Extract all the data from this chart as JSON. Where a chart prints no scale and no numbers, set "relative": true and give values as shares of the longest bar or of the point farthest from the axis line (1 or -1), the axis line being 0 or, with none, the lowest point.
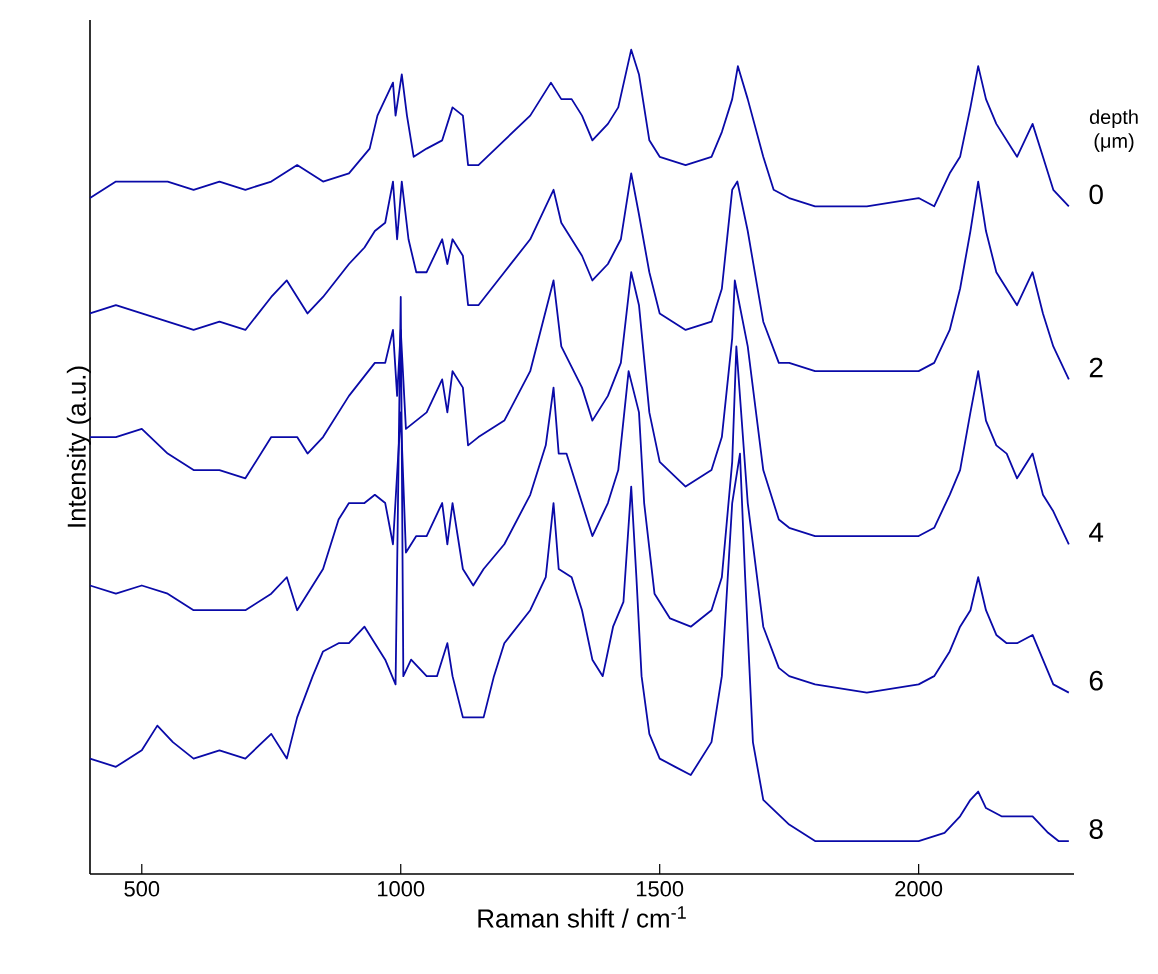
{
  "chart_data": {
    "type": "line",
    "relative": true,
    "xlabel": "Raman shift / cm$^{-1}$",
    "ylabel": "Intensity (a.u.)",
    "legend_title": "depth (μm)",
    "xlim": [
      400,
      2300
    ],
    "xticks": [
      500,
      1000,
      1500,
      2000
    ],
    "grid": false,
    "legend": false,
    "marker": "none",
    "line_style": "solid",
    "series": [
      {
        "name": "0",
        "color": "#0a0aa8",
        "x": [
          400,
          450,
          500,
          550,
          600,
          650,
          700,
          750,
          800,
          850,
          900,
          940,
          955,
          985,
          990,
          1002,
          1012,
          1025,
          1050,
          1080,
          1100,
          1120,
          1130,
          1150,
          1200,
          1250,
          1290,
          1310,
          1330,
          1350,
          1370,
          1400,
          1420,
          1445,
          1460,
          1480,
          1500,
          1550,
          1600,
          1620,
          1640,
          1651,
          1670,
          1700,
          1720,
          1750,
          1800,
          1900,
          2000,
          2030,
          2060,
          2080,
          2100,
          2115,
          2130,
          2150,
          2170,
          2190,
          2220,
          2240,
          2260,
          2290
        ],
        "values": [
          0.82,
          0.84,
          0.84,
          0.84,
          0.83,
          0.84,
          0.83,
          0.84,
          0.86,
          0.84,
          0.85,
          0.88,
          0.92,
          0.96,
          0.92,
          0.97,
          0.92,
          0.87,
          0.88,
          0.89,
          0.93,
          0.92,
          0.86,
          0.86,
          0.89,
          0.92,
          0.96,
          0.94,
          0.94,
          0.92,
          0.89,
          0.91,
          0.93,
          1.0,
          0.97,
          0.89,
          0.87,
          0.86,
          0.87,
          0.9,
          0.94,
          0.98,
          0.94,
          0.87,
          0.83,
          0.82,
          0.81,
          0.81,
          0.82,
          0.81,
          0.85,
          0.87,
          0.93,
          0.98,
          0.94,
          0.91,
          0.89,
          0.87,
          0.91,
          0.87,
          0.83,
          0.81
        ]
      },
      {
        "name": "2",
        "color": "#0a0aa8",
        "x": [
          400,
          450,
          500,
          550,
          600,
          650,
          700,
          750,
          780,
          800,
          820,
          850,
          900,
          930,
          950,
          970,
          985,
          993,
          1002,
          1015,
          1030,
          1050,
          1080,
          1090,
          1100,
          1120,
          1130,
          1150,
          1200,
          1250,
          1295,
          1310,
          1350,
          1370,
          1400,
          1425,
          1445,
          1460,
          1480,
          1500,
          1550,
          1600,
          1620,
          1640,
          1650,
          1670,
          1700,
          1730,
          1750,
          1800,
          1900,
          2000,
          2030,
          2060,
          2080,
          2100,
          2115,
          2130,
          2150,
          2170,
          2190,
          2220,
          2240,
          2260,
          2290
        ],
        "values": [
          0.68,
          0.69,
          0.68,
          0.67,
          0.66,
          0.67,
          0.66,
          0.7,
          0.72,
          0.7,
          0.68,
          0.7,
          0.74,
          0.76,
          0.78,
          0.79,
          0.84,
          0.77,
          0.84,
          0.77,
          0.73,
          0.73,
          0.77,
          0.74,
          0.77,
          0.75,
          0.69,
          0.69,
          0.73,
          0.77,
          0.83,
          0.79,
          0.75,
          0.72,
          0.74,
          0.77,
          0.85,
          0.8,
          0.73,
          0.68,
          0.66,
          0.67,
          0.71,
          0.83,
          0.84,
          0.78,
          0.67,
          0.62,
          0.62,
          0.61,
          0.61,
          0.61,
          0.62,
          0.66,
          0.71,
          0.78,
          0.84,
          0.78,
          0.73,
          0.71,
          0.69,
          0.73,
          0.68,
          0.64,
          0.6
        ]
      },
      {
        "name": "4",
        "color": "#0a0aa8",
        "x": [
          400,
          450,
          500,
          550,
          600,
          650,
          700,
          750,
          800,
          820,
          850,
          900,
          950,
          970,
          985,
          993,
          1000,
          1010,
          1030,
          1050,
          1080,
          1090,
          1100,
          1120,
          1130,
          1150,
          1200,
          1250,
          1295,
          1310,
          1350,
          1370,
          1400,
          1425,
          1445,
          1460,
          1480,
          1500,
          1550,
          1600,
          1620,
          1640,
          1645,
          1670,
          1700,
          1730,
          1750,
          1800,
          1900,
          2000,
          2030,
          2060,
          2080,
          2100,
          2115,
          2130,
          2150,
          2170,
          2190,
          2220,
          2240,
          2260,
          2290
        ],
        "values": [
          0.53,
          0.53,
          0.54,
          0.51,
          0.49,
          0.49,
          0.48,
          0.53,
          0.53,
          0.51,
          0.53,
          0.58,
          0.62,
          0.62,
          0.66,
          0.58,
          0.66,
          0.54,
          0.55,
          0.56,
          0.6,
          0.56,
          0.61,
          0.59,
          0.52,
          0.53,
          0.55,
          0.61,
          0.72,
          0.64,
          0.59,
          0.55,
          0.58,
          0.62,
          0.73,
          0.69,
          0.56,
          0.5,
          0.47,
          0.49,
          0.53,
          0.65,
          0.72,
          0.64,
          0.49,
          0.43,
          0.42,
          0.41,
          0.41,
          0.41,
          0.42,
          0.46,
          0.49,
          0.56,
          0.61,
          0.55,
          0.52,
          0.51,
          0.48,
          0.51,
          0.46,
          0.44,
          0.4
        ]
      },
      {
        "name": "6",
        "color": "#0a0aa8",
        "x": [
          400,
          450,
          500,
          550,
          600,
          650,
          700,
          750,
          780,
          800,
          850,
          880,
          900,
          930,
          950,
          970,
          985,
          1000,
          1010,
          1030,
          1050,
          1080,
          1090,
          1100,
          1120,
          1140,
          1160,
          1200,
          1250,
          1280,
          1295,
          1305,
          1320,
          1350,
          1370,
          1400,
          1420,
          1440,
          1460,
          1470,
          1490,
          1520,
          1560,
          1600,
          1620,
          1640,
          1648,
          1670,
          1700,
          1730,
          1750,
          1800,
          1900,
          2000,
          2030,
          2060,
          2080,
          2100,
          2115,
          2130,
          2150,
          2170,
          2190,
          2220,
          2240,
          2260,
          2290
        ],
        "values": [
          0.35,
          0.34,
          0.35,
          0.34,
          0.32,
          0.32,
          0.32,
          0.34,
          0.36,
          0.32,
          0.37,
          0.43,
          0.45,
          0.45,
          0.46,
          0.45,
          0.4,
          0.56,
          0.39,
          0.41,
          0.41,
          0.45,
          0.4,
          0.45,
          0.37,
          0.35,
          0.37,
          0.4,
          0.46,
          0.52,
          0.59,
          0.51,
          0.51,
          0.45,
          0.41,
          0.45,
          0.49,
          0.61,
          0.56,
          0.45,
          0.34,
          0.31,
          0.3,
          0.32,
          0.36,
          0.5,
          0.64,
          0.45,
          0.3,
          0.25,
          0.24,
          0.23,
          0.22,
          0.23,
          0.24,
          0.27,
          0.3,
          0.32,
          0.36,
          0.32,
          0.29,
          0.28,
          0.28,
          0.29,
          0.26,
          0.23,
          0.22
        ]
      },
      {
        "name": "8",
        "color": "#0a0aa8",
        "x": [
          400,
          450,
          500,
          530,
          560,
          600,
          650,
          700,
          750,
          780,
          800,
          830,
          850,
          880,
          900,
          930,
          950,
          970,
          990,
          1000,
          1005,
          1020,
          1050,
          1070,
          1090,
          1100,
          1120,
          1140,
          1160,
          1180,
          1200,
          1250,
          1280,
          1295,
          1305,
          1330,
          1350,
          1370,
          1390,
          1410,
          1430,
          1445,
          1455,
          1465,
          1480,
          1500,
          1530,
          1560,
          1600,
          1620,
          1640,
          1655,
          1665,
          1680,
          1700,
          1750,
          1800,
          1900,
          2000,
          2050,
          2080,
          2100,
          2115,
          2130,
          2160,
          2190,
          2220,
          2250,
          2270,
          2290
        ],
        "values": [
          0.14,
          0.13,
          0.15,
          0.18,
          0.16,
          0.14,
          0.15,
          0.14,
          0.17,
          0.14,
          0.19,
          0.24,
          0.27,
          0.28,
          0.28,
          0.3,
          0.28,
          0.26,
          0.23,
          0.7,
          0.24,
          0.26,
          0.24,
          0.24,
          0.28,
          0.24,
          0.19,
          0.19,
          0.19,
          0.24,
          0.28,
          0.32,
          0.36,
          0.45,
          0.37,
          0.36,
          0.32,
          0.26,
          0.24,
          0.3,
          0.33,
          0.47,
          0.36,
          0.24,
          0.17,
          0.14,
          0.13,
          0.12,
          0.16,
          0.24,
          0.45,
          0.51,
          0.36,
          0.16,
          0.09,
          0.06,
          0.04,
          0.04,
          0.04,
          0.05,
          0.07,
          0.09,
          0.1,
          0.08,
          0.07,
          0.07,
          0.07,
          0.05,
          0.04,
          0.04
        ]
      }
    ]
  }
}
